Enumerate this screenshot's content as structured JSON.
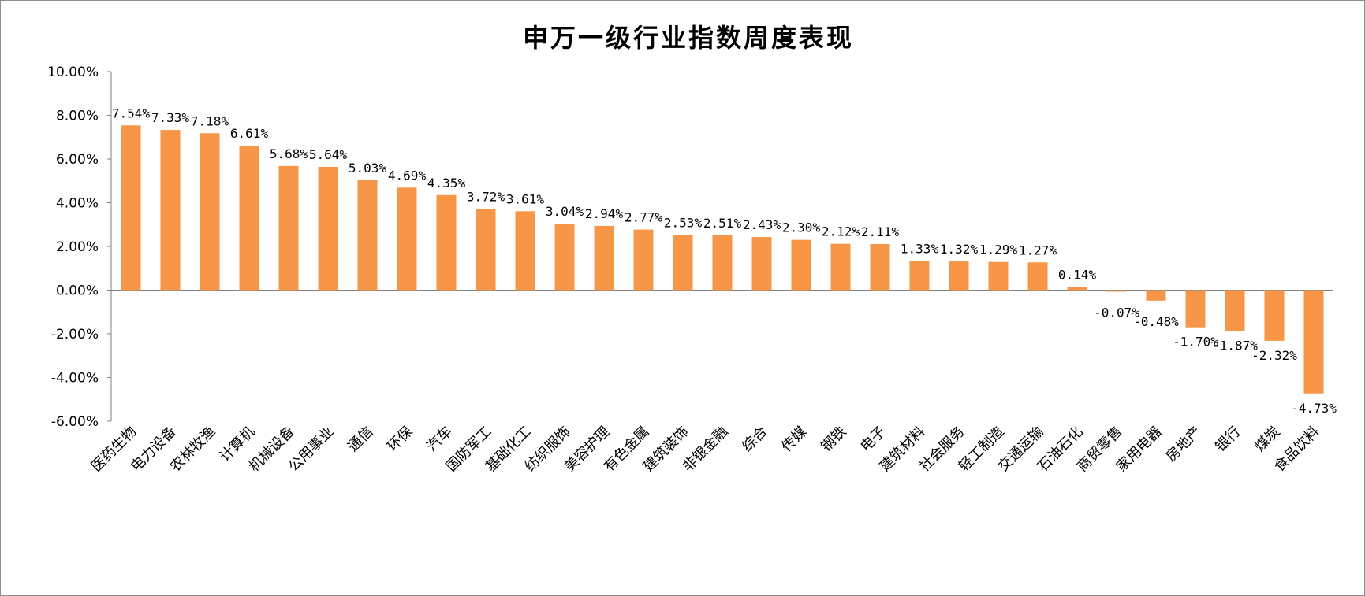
{
  "chart_data": {
    "type": "bar",
    "title": "申万一级行业指数周度表现",
    "xlabel": "",
    "ylabel": "",
    "ylim": [
      -6,
      10
    ],
    "yticks": [
      10,
      8,
      6,
      4,
      2,
      0,
      -2,
      -4,
      -6
    ],
    "ytick_labels": [
      "10.00%",
      "8.00%",
      "6.00%",
      "4.00%",
      "2.00%",
      "0.00%",
      "-2.00%",
      "-4.00%",
      "-6.00%"
    ],
    "grid": false,
    "legend": "none",
    "bar_color": "#F79646",
    "categories": [
      "医药生物",
      "电力设备",
      "农林牧渔",
      "计算机",
      "机械设备",
      "公用事业",
      "通信",
      "环保",
      "汽车",
      "国防军工",
      "基础化工",
      "纺织服饰",
      "美容护理",
      "有色金属",
      "建筑装饰",
      "非银金融",
      "综合",
      "传媒",
      "钢铁",
      "电子",
      "建筑材料",
      "社会服务",
      "轻工制造",
      "交通运输",
      "石油石化",
      "商贸零售",
      "家用电器",
      "房地产",
      "银行",
      "煤炭",
      "食品饮料"
    ],
    "values": [
      7.54,
      7.33,
      7.18,
      6.61,
      5.68,
      5.64,
      5.03,
      4.69,
      4.35,
      3.72,
      3.61,
      3.04,
      2.94,
      2.77,
      2.53,
      2.51,
      2.43,
      2.3,
      2.12,
      2.11,
      1.33,
      1.32,
      1.29,
      1.27,
      0.14,
      -0.07,
      -0.48,
      -1.7,
      -1.87,
      -2.32,
      -4.73
    ],
    "data_labels": [
      "7.54%",
      "7.33%",
      "7.18%",
      "6.61%",
      "5.68%",
      "5.64%",
      "5.03%",
      "4.69%",
      "4.35%",
      "3.72%",
      "3.61%",
      "3.04%",
      "2.94%",
      "2.77%",
      "2.53%",
      "2.51%",
      "2.43%",
      "2.30%",
      "2.12%",
      "2.11%",
      "1.33%",
      "1.32%",
      "1.29%",
      "1.27%",
      "0.14%",
      "-0.07%",
      "-0.48%",
      "-1.70%",
      "-1.87%",
      "-2.32%",
      "-4.73%"
    ]
  }
}
